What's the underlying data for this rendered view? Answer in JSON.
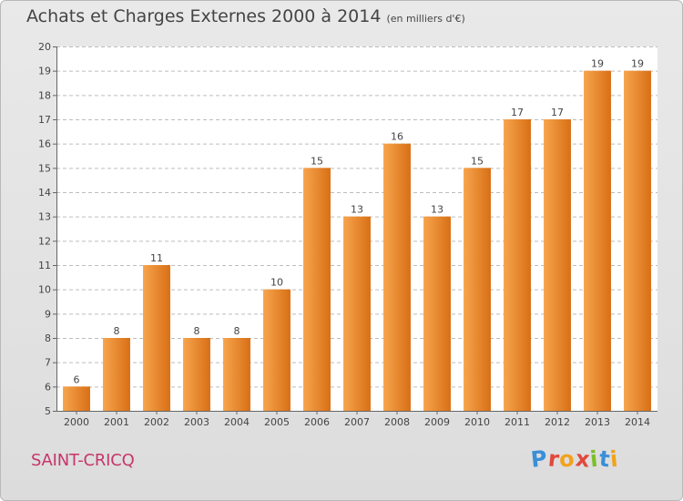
{
  "header": {
    "title": "Achats et Charges Externes 2000 à 2014",
    "unit": "(en milliers d'€)"
  },
  "footer": {
    "commune": "SAINT-CRICQ",
    "logo_text": "Proxiti"
  },
  "colors": {
    "bar_light": "#f7a54e",
    "bar_dark": "#d86f15",
    "grid": "#bdbdbd",
    "plot_bg": "#ffffff",
    "commune_text": "#c6366a"
  },
  "chart_data": {
    "type": "bar",
    "categories": [
      "2000",
      "2001",
      "2002",
      "2003",
      "2004",
      "2005",
      "2006",
      "2007",
      "2008",
      "2009",
      "2010",
      "2011",
      "2012",
      "2013",
      "2014"
    ],
    "values": [
      6,
      8,
      11,
      8,
      8,
      10,
      15,
      13,
      16,
      13,
      15,
      17,
      17,
      19,
      19
    ],
    "data_labels": [
      "6",
      "8",
      "11",
      "8",
      "8",
      "10",
      "15",
      "13",
      "16",
      "13",
      "15",
      "17",
      "17",
      "19",
      "19"
    ],
    "title": "Achats et Charges Externes 2000 à 2014",
    "subtitle": "(en milliers d'€)",
    "xlabel": "",
    "ylabel": "",
    "ylim": [
      5,
      20
    ],
    "yticks": [
      5,
      6,
      7,
      8,
      9,
      10,
      11,
      12,
      13,
      14,
      15,
      16,
      17,
      18,
      19,
      20
    ],
    "ytick_labels": [
      "5",
      "6",
      "7",
      "8",
      "9",
      "10",
      "11",
      "12",
      "13",
      "14",
      "15",
      "16",
      "17",
      "18",
      "19",
      "20"
    ],
    "grid": true,
    "grid_style": "dashed horizontal"
  }
}
